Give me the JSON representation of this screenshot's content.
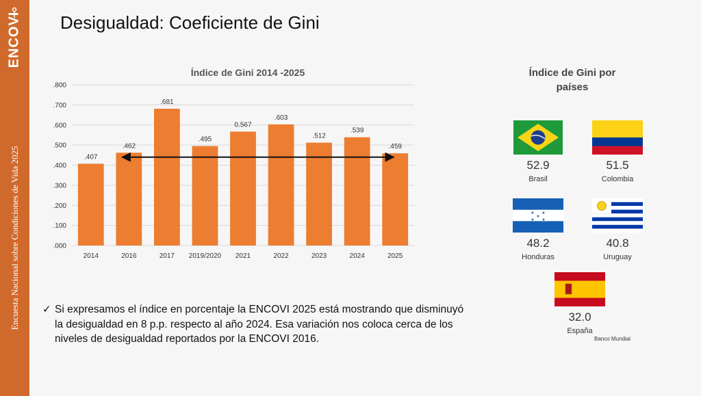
{
  "sidebar": {
    "logo_text": "ENCOVI",
    "caption": "Encuesta Nacional sobre Condiciones de Vida 2025"
  },
  "title": "Desigualdad: Coeficiente de Gini",
  "chart_data": {
    "type": "bar",
    "title": "Índice de Gini 2014 -2025",
    "categories": [
      "2014",
      "2016",
      "2017",
      "2019/2020",
      "2021",
      "2022",
      "2023",
      "2024",
      "2025"
    ],
    "values": [
      0.407,
      0.462,
      0.681,
      0.495,
      0.567,
      0.603,
      0.512,
      0.539,
      0.459
    ],
    "data_labels": [
      ".407",
      ".462",
      ".681",
      ".495",
      "0.567",
      ".603",
      ".512",
      ".539",
      ".459"
    ],
    "y_ticks": [
      ".000",
      ".100",
      ".200",
      ".300",
      ".400",
      ".500",
      ".600",
      ".700",
      ".800"
    ],
    "ylim": [
      0,
      0.8
    ],
    "grid": true,
    "bar_color": "#ed7d31",
    "annotation": {
      "type": "double-arrow",
      "from": "2016",
      "to": "2025",
      "y": 0.44
    }
  },
  "note": {
    "check": "✓",
    "text": "Si expresamos el índice en porcentaje la ENCOVI 2025 está mostrando que disminuyó la desigualdad en 8 p.p. respecto al año 2024. Esa variación nos coloca cerca de los niveles de desigualdad reportados por la ENCOVI 2016."
  },
  "countries_panel": {
    "title": "Índice de Gini por países",
    "countries": [
      {
        "name": "Brasil",
        "value": "52.9",
        "flag": "brazil-flag"
      },
      {
        "name": "Colombia",
        "value": "51.5",
        "flag": "colombia-flag"
      },
      {
        "name": "Honduras",
        "value": "48.2",
        "flag": "honduras-flag"
      },
      {
        "name": "Uruguay",
        "value": "40.8",
        "flag": "uruguay-flag"
      },
      {
        "name": "España",
        "value": "32.0",
        "flag": "spain-flag"
      }
    ],
    "source": "Banco Mundial"
  }
}
